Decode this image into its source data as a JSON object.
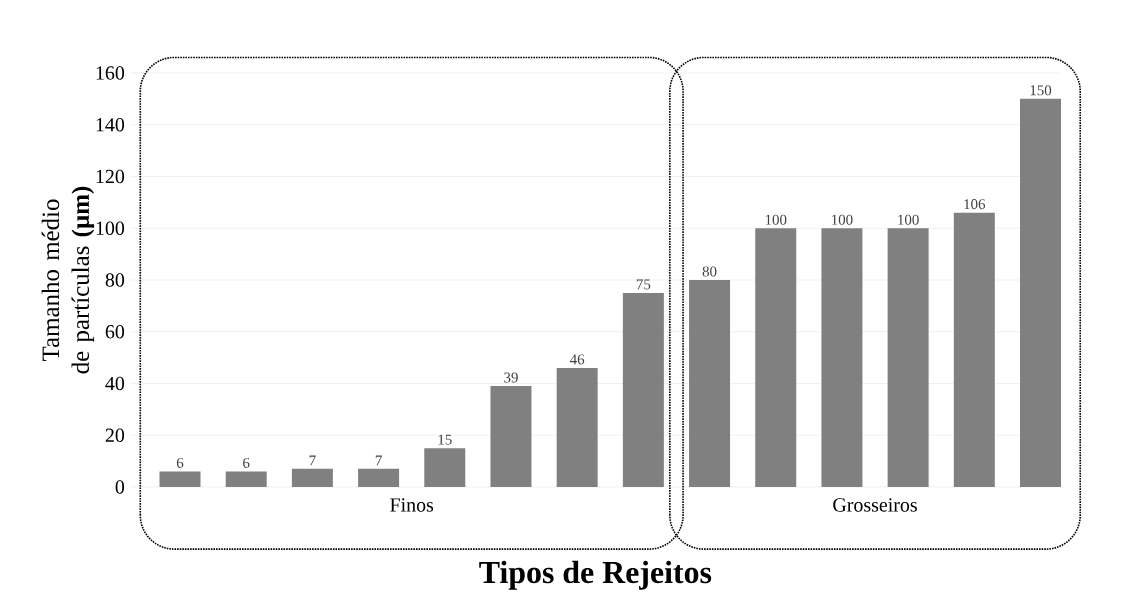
{
  "chart_data": {
    "type": "bar",
    "xlabel": "Tipos de Rejeitos",
    "ylabel": "Tamanho médio de partículas **(µm)**",
    "categories": [
      null,
      null,
      null,
      null,
      null,
      null,
      null,
      null,
      null,
      null,
      null,
      null,
      null,
      null
    ],
    "values": [
      6,
      6,
      7,
      7,
      15,
      39,
      46,
      75,
      80,
      100,
      100,
      100,
      106,
      150
    ],
    "color": "#808080",
    "ylim": [
      0,
      160
    ],
    "yticks": [
      0,
      20,
      40,
      60,
      80,
      100,
      120,
      140,
      160
    ],
    "grid": "y",
    "data_labels": true,
    "annotations": [
      "Finos",
      "Grosseiros"
    ]
  }
}
